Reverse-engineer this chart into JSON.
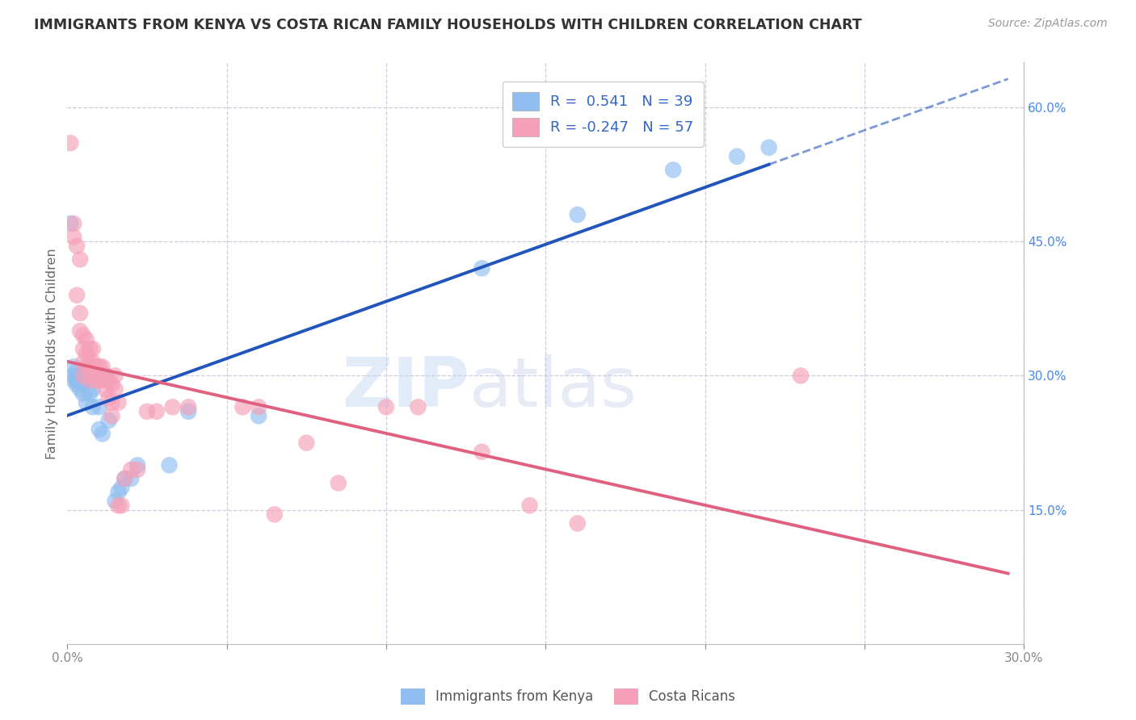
{
  "title": "IMMIGRANTS FROM KENYA VS COSTA RICAN FAMILY HOUSEHOLDS WITH CHILDREN CORRELATION CHART",
  "source": "Source: ZipAtlas.com",
  "ylabel": "Family Households with Children",
  "watermark_zip": "ZIP",
  "watermark_atlas": "atlas",
  "blue_color": "#90BEF0",
  "pink_color": "#F5A0B8",
  "blue_line_color": "#2255BB",
  "pink_line_color": "#E06080",
  "blue_scatter": [
    [
      0.001,
      0.47
    ],
    [
      0.002,
      0.3
    ],
    [
      0.002,
      0.295
    ],
    [
      0.002,
      0.31
    ],
    [
      0.003,
      0.295
    ],
    [
      0.003,
      0.29
    ],
    [
      0.003,
      0.305
    ],
    [
      0.004,
      0.285
    ],
    [
      0.004,
      0.3
    ],
    [
      0.004,
      0.295
    ],
    [
      0.005,
      0.295
    ],
    [
      0.005,
      0.28
    ],
    [
      0.005,
      0.3
    ],
    [
      0.006,
      0.27
    ],
    [
      0.006,
      0.295
    ],
    [
      0.007,
      0.295
    ],
    [
      0.007,
      0.28
    ],
    [
      0.008,
      0.285
    ],
    [
      0.008,
      0.265
    ],
    [
      0.009,
      0.3
    ],
    [
      0.01,
      0.265
    ],
    [
      0.01,
      0.24
    ],
    [
      0.011,
      0.235
    ],
    [
      0.012,
      0.3
    ],
    [
      0.013,
      0.25
    ],
    [
      0.015,
      0.16
    ],
    [
      0.016,
      0.17
    ],
    [
      0.017,
      0.175
    ],
    [
      0.018,
      0.185
    ],
    [
      0.02,
      0.185
    ],
    [
      0.022,
      0.2
    ],
    [
      0.032,
      0.2
    ],
    [
      0.038,
      0.26
    ],
    [
      0.06,
      0.255
    ],
    [
      0.13,
      0.42
    ],
    [
      0.16,
      0.48
    ],
    [
      0.19,
      0.53
    ],
    [
      0.21,
      0.545
    ],
    [
      0.22,
      0.555
    ]
  ],
  "pink_scatter": [
    [
      0.001,
      0.56
    ],
    [
      0.002,
      0.47
    ],
    [
      0.002,
      0.455
    ],
    [
      0.003,
      0.445
    ],
    [
      0.003,
      0.39
    ],
    [
      0.004,
      0.37
    ],
    [
      0.004,
      0.35
    ],
    [
      0.004,
      0.43
    ],
    [
      0.005,
      0.345
    ],
    [
      0.005,
      0.33
    ],
    [
      0.005,
      0.315
    ],
    [
      0.005,
      0.3
    ],
    [
      0.006,
      0.34
    ],
    [
      0.006,
      0.325
    ],
    [
      0.006,
      0.31
    ],
    [
      0.007,
      0.33
    ],
    [
      0.007,
      0.315
    ],
    [
      0.007,
      0.295
    ],
    [
      0.008,
      0.33
    ],
    [
      0.008,
      0.315
    ],
    [
      0.008,
      0.3
    ],
    [
      0.009,
      0.31
    ],
    [
      0.009,
      0.295
    ],
    [
      0.01,
      0.31
    ],
    [
      0.01,
      0.295
    ],
    [
      0.011,
      0.31
    ],
    [
      0.011,
      0.295
    ],
    [
      0.012,
      0.3
    ],
    [
      0.012,
      0.285
    ],
    [
      0.013,
      0.295
    ],
    [
      0.013,
      0.275
    ],
    [
      0.014,
      0.29
    ],
    [
      0.014,
      0.27
    ],
    [
      0.014,
      0.255
    ],
    [
      0.015,
      0.3
    ],
    [
      0.015,
      0.285
    ],
    [
      0.016,
      0.27
    ],
    [
      0.016,
      0.155
    ],
    [
      0.017,
      0.155
    ],
    [
      0.018,
      0.185
    ],
    [
      0.02,
      0.195
    ],
    [
      0.022,
      0.195
    ],
    [
      0.025,
      0.26
    ],
    [
      0.028,
      0.26
    ],
    [
      0.033,
      0.265
    ],
    [
      0.038,
      0.265
    ],
    [
      0.055,
      0.265
    ],
    [
      0.06,
      0.265
    ],
    [
      0.065,
      0.145
    ],
    [
      0.075,
      0.225
    ],
    [
      0.085,
      0.18
    ],
    [
      0.1,
      0.265
    ],
    [
      0.11,
      0.265
    ],
    [
      0.13,
      0.215
    ],
    [
      0.145,
      0.155
    ],
    [
      0.16,
      0.135
    ],
    [
      0.23,
      0.3
    ]
  ],
  "xlim": [
    0.0,
    0.3
  ],
  "ylim": [
    0.0,
    0.65
  ],
  "background_color": "#FFFFFF",
  "grid_color": "#CCCCDD",
  "blue_line_x_solid_end": 0.22,
  "blue_line_x_dash_end": 0.295,
  "pink_line_x_end": 0.295,
  "legend_blue_label": "R =  0.541   N = 39",
  "legend_pink_label": "R = -0.247   N = 57"
}
